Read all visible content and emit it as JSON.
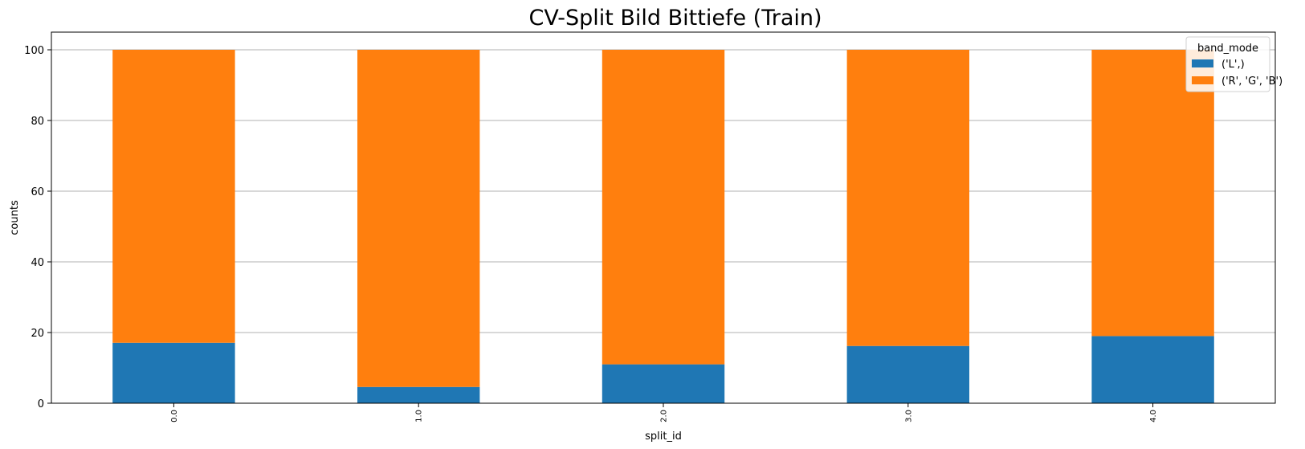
{
  "chart_data": {
    "type": "bar",
    "stacked": true,
    "title": "CV-Split Bild Bittiefe (Train)",
    "xlabel": "split_id",
    "ylabel": "counts",
    "categories": [
      "0.0",
      "1.0",
      "2.0",
      "3.0",
      "4.0"
    ],
    "series": [
      {
        "name": "('L',)",
        "color": "#1f77b4",
        "values": [
          17.1,
          4.6,
          11.0,
          16.2,
          19.0
        ]
      },
      {
        "name": "('R', 'G', 'B')",
        "color": "#ff7f0e",
        "values": [
          82.9,
          95.4,
          89.0,
          83.8,
          81.0
        ]
      }
    ],
    "ylim": [
      0,
      105
    ],
    "yticks": [
      0,
      20,
      40,
      60,
      80,
      100
    ],
    "grid": "y",
    "legend": {
      "title": "band_mode",
      "position": "top-right"
    }
  }
}
